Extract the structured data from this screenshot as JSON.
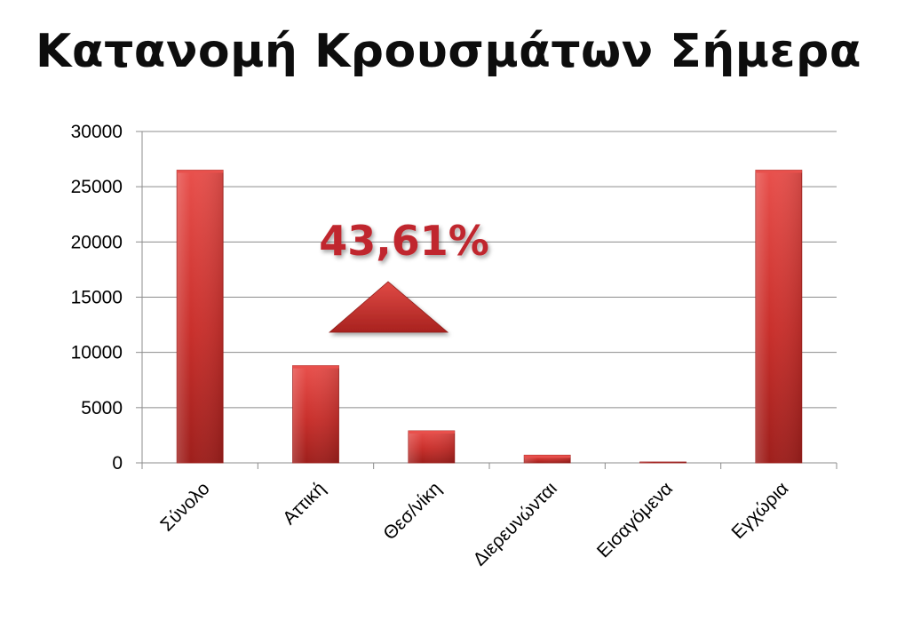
{
  "chart_data": {
    "type": "bar",
    "title": "Κατανομή Κρουσμάτων Σήμερα",
    "categories": [
      "Σύνολο",
      "Αττική",
      "Θεσ/νίκη",
      "Διερευνώνται",
      "Εισαγόμενα",
      "Εγχώρια"
    ],
    "values": [
      26500,
      8800,
      2900,
      700,
      80,
      26500
    ],
    "ylim": [
      0,
      30000
    ],
    "yticks": [
      "0",
      "5000",
      "10000",
      "15000",
      "20000",
      "25000",
      "30000"
    ],
    "grid": true,
    "legend": "none",
    "annotation": {
      "text": "43,61%",
      "shape": "up-triangle"
    },
    "colors": {
      "bar": "#c9302c",
      "bar_light": "#e8504c",
      "bar_dark": "#9e1f1c",
      "annotation": "#c0282d",
      "grid": "#8c8c8c"
    }
  }
}
